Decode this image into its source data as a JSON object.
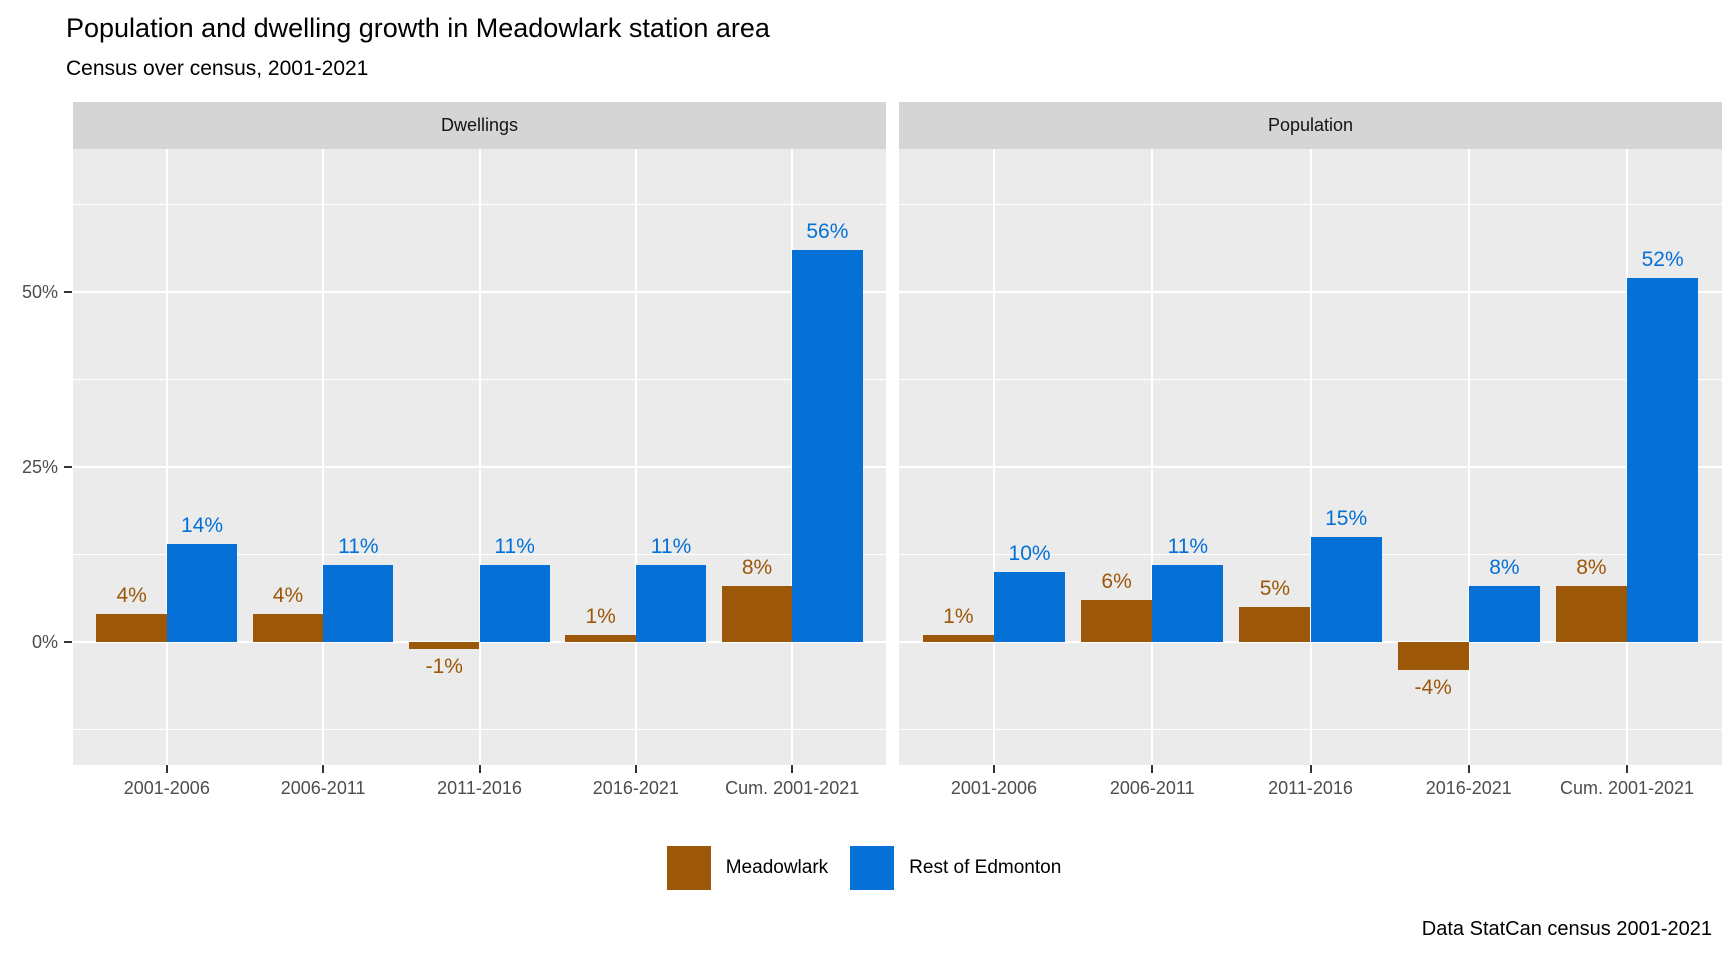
{
  "chart_data": {
    "type": "bar",
    "title": "Population and dwelling growth in Meadowlark station area",
    "subtitle": "Census over census, 2001-2021",
    "caption": "Data StatCan census 2001-2021",
    "categories": [
      "2001-2006",
      "2006-2011",
      "2011-2016",
      "2016-2021",
      "Cum. 2001-2021"
    ],
    "facets": [
      {
        "label": "Dwellings",
        "series": [
          {
            "name": "Meadowlark",
            "values": [
              4,
              4,
              -1,
              1,
              8
            ]
          },
          {
            "name": "Rest of Edmonton",
            "values": [
              14,
              11,
              11,
              11,
              56
            ]
          }
        ]
      },
      {
        "label": "Population",
        "series": [
          {
            "name": "Meadowlark",
            "values": [
              1,
              6,
              5,
              -4,
              8
            ]
          },
          {
            "name": "Rest of Edmonton",
            "values": [
              10,
              11,
              15,
              8,
              52
            ]
          }
        ]
      }
    ],
    "series_colors": {
      "Meadowlark": "#9C5708",
      "Rest of Edmonton": "#0570D6"
    },
    "value_label_suffix": "%",
    "legend": [
      "Meadowlark",
      "Rest of Edmonton"
    ],
    "legend_position": "bottom",
    "y_axis": {
      "tick_values": [
        0,
        25,
        50
      ],
      "tick_labels": [
        "0%",
        "25%",
        "50%"
      ],
      "minor_tick_values": [
        -12.5,
        12.5,
        37.5,
        62.5
      ],
      "ylim": [
        -17.6,
        70.4
      ]
    },
    "grid": true,
    "panel_bg": "#EBEBEB",
    "strip_bg": "#D5D5D5",
    "grid_color": "#FFFFFF",
    "axis_text_color": "#4D4D4D"
  }
}
